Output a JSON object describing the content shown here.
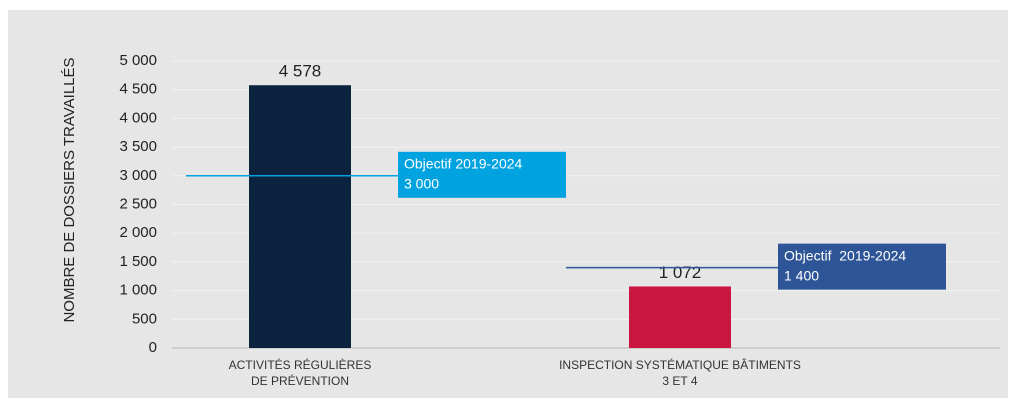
{
  "chart_data": {
    "type": "bar",
    "y_label": "NOMBRE DE DOSSIERS TRAVAILLÉS",
    "categories": [
      [
        "ACTIVITÉS RÉGULIÈRES",
        "DE PRÉVENTION"
      ],
      [
        "INSPECTION SYSTÉMATIQUE BÂTIMENTS",
        "3 ET 4"
      ]
    ],
    "values": [
      4578,
      1072
    ],
    "value_labels": [
      "4 578",
      "1 072"
    ],
    "colors": [
      "#0c2340",
      "#c8163f"
    ],
    "ylim": [
      0,
      5000
    ],
    "yticks": [
      0,
      500,
      {
        "value": 1000,
        "label": "1 000"
      },
      {
        "value": 1500,
        "label": "1 500"
      },
      {
        "value": 2000,
        "label": "2 000"
      },
      {
        "value": 2500,
        "label": "2 500"
      },
      {
        "value": 3000,
        "label": "3 000"
      },
      {
        "value": 3500,
        "label": "3 500"
      },
      {
        "value": 4000,
        "label": "4 000"
      },
      {
        "value": 4500,
        "label": "4 500"
      },
      {
        "value": 5000,
        "label": "5 000"
      }
    ],
    "grid": true,
    "targets": [
      {
        "label": "Objectif 2019-2024",
        "value": 3000,
        "value_label": "3 000",
        "color": "#00a3e0"
      },
      {
        "label": "Objectif  2019-2024",
        "value": 1400,
        "value_label": "1 400",
        "color": "#2e5597"
      }
    ]
  }
}
